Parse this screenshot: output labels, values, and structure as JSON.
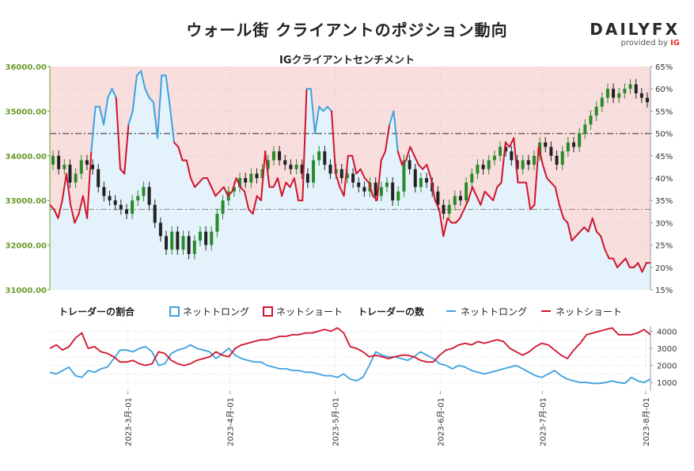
{
  "title": "ウォール街 クライアントのポジション動向",
  "brand": {
    "name": "DAILYFX",
    "provided_by": "provided by",
    "provider": "IG"
  },
  "colors": {
    "long": "#3ea1e0",
    "short": "#d0142d",
    "long_fill": "#e3f2fb",
    "short_fill": "#f9dede",
    "candle_up": "#2a8a2a",
    "candle_down": "#222222",
    "price_axis": "#6a9a2a"
  },
  "legend": {
    "ratio_title": "トレーダーの割合",
    "ratio_long": "ネットトロング",
    "ratio_short": "ネットショート",
    "count_title": "トレーダーの数",
    "count_long": "ネットトロング",
    "count_short": "ネットショート"
  },
  "chart_data": [
    {
      "type": "candlestick+line",
      "title": "IGクライアントセンチメント",
      "y_left": {
        "min": 31000,
        "max": 36000,
        "ticks": [
          "31000.00",
          "32000.00",
          "33000.00",
          "34000.00",
          "35000.00",
          "36000.00"
        ]
      },
      "y_right": {
        "min": 15,
        "max": 65,
        "ticks": [
          "15%",
          "20%",
          "25%",
          "30%",
          "35%",
          "40%",
          "45%",
          "50%",
          "55%",
          "60%",
          "65%"
        ]
      },
      "reference_lines": [
        {
          "axis": "right",
          "value": 50,
          "style": "dash-dot"
        },
        {
          "axis": "left",
          "value": 32800,
          "style": "dash-dot"
        }
      ],
      "x_ticks": [
        "2023-3月-01",
        "2023-4月-01",
        "2023-5月-01",
        "2023-6月-01",
        "2023-7月-01",
        "2023-8月-01"
      ],
      "long_pct": [
        34,
        33,
        31,
        35,
        41,
        34,
        30,
        32,
        36,
        31,
        46,
        56,
        56,
        52,
        58,
        60,
        58,
        42,
        41,
        52,
        55,
        63,
        64,
        60,
        58,
        57,
        49,
        63,
        63,
        56,
        48,
        47,
        44,
        44,
        40,
        38,
        39,
        40,
        40,
        38,
        36,
        37,
        38,
        36,
        37,
        40,
        38,
        37,
        33,
        32,
        36,
        35,
        46,
        38,
        38,
        40,
        36,
        39,
        38,
        40,
        35,
        35,
        60,
        60,
        50,
        56,
        55,
        56,
        55,
        41,
        38,
        36,
        45,
        45,
        41,
        42,
        40,
        39,
        36,
        35,
        44,
        46,
        52,
        55,
        46,
        43,
        44,
        47,
        45,
        43,
        42,
        43,
        40,
        35,
        33,
        27,
        31,
        30,
        30,
        31,
        33,
        35,
        38,
        36,
        34,
        37,
        36,
        35,
        38,
        39,
        48,
        47,
        49,
        39,
        39,
        39,
        33,
        34,
        47,
        43,
        40,
        39,
        38,
        34,
        31,
        30,
        26,
        27,
        28,
        29,
        28,
        31,
        28,
        27,
        24,
        22,
        22,
        20,
        21,
        22,
        20,
        20,
        21,
        19,
        21,
        21
      ],
      "candles": [
        {
          "o": 33800,
          "c": 34000
        },
        {
          "o": 34000,
          "c": 33700
        },
        {
          "o": 33700,
          "c": 33800
        },
        {
          "o": 33800,
          "c": 33400
        },
        {
          "o": 33400,
          "c": 33600
        },
        {
          "o": 33600,
          "c": 33900
        },
        {
          "o": 33900,
          "c": 33800
        },
        {
          "o": 33800,
          "c": 33700
        },
        {
          "o": 33700,
          "c": 33300
        },
        {
          "o": 33300,
          "c": 33100
        },
        {
          "o": 33100,
          "c": 33000
        },
        {
          "o": 33000,
          "c": 32900
        },
        {
          "o": 32900,
          "c": 32800
        },
        {
          "o": 32800,
          "c": 32700
        },
        {
          "o": 32700,
          "c": 33000
        },
        {
          "o": 33000,
          "c": 33100
        },
        {
          "o": 33100,
          "c": 33300
        },
        {
          "o": 33300,
          "c": 32900
        },
        {
          "o": 32900,
          "c": 32500
        },
        {
          "o": 32500,
          "c": 32200
        },
        {
          "o": 32200,
          "c": 31900
        },
        {
          "o": 31900,
          "c": 32300
        },
        {
          "o": 32300,
          "c": 31900
        },
        {
          "o": 31900,
          "c": 32200
        },
        {
          "o": 32200,
          "c": 31800
        },
        {
          "o": 31800,
          "c": 32100
        },
        {
          "o": 32100,
          "c": 32300
        },
        {
          "o": 32300,
          "c": 32000
        },
        {
          "o": 32000,
          "c": 32300
        },
        {
          "o": 32300,
          "c": 32700
        },
        {
          "o": 32700,
          "c": 33000
        },
        {
          "o": 33000,
          "c": 33200
        },
        {
          "o": 33200,
          "c": 33300
        },
        {
          "o": 33300,
          "c": 33500
        },
        {
          "o": 33500,
          "c": 33400
        },
        {
          "o": 33400,
          "c": 33600
        },
        {
          "o": 33600,
          "c": 33500
        },
        {
          "o": 33500,
          "c": 33700
        },
        {
          "o": 33700,
          "c": 33900
        },
        {
          "o": 33900,
          "c": 34100
        },
        {
          "o": 34100,
          "c": 33900
        },
        {
          "o": 33900,
          "c": 33800
        },
        {
          "o": 33800,
          "c": 33700
        },
        {
          "o": 33700,
          "c": 33800
        },
        {
          "o": 33800,
          "c": 33600
        },
        {
          "o": 33600,
          "c": 33400
        },
        {
          "o": 33400,
          "c": 33900
        },
        {
          "o": 33900,
          "c": 34100
        },
        {
          "o": 34100,
          "c": 33800
        },
        {
          "o": 33800,
          "c": 33600
        },
        {
          "o": 33600,
          "c": 33700
        },
        {
          "o": 33700,
          "c": 33500
        },
        {
          "o": 33500,
          "c": 33600
        },
        {
          "o": 33600,
          "c": 33400
        },
        {
          "o": 33400,
          "c": 33300
        },
        {
          "o": 33300,
          "c": 33200
        },
        {
          "o": 33200,
          "c": 33400
        },
        {
          "o": 33400,
          "c": 33100
        },
        {
          "o": 33100,
          "c": 33300
        },
        {
          "o": 33300,
          "c": 33400
        },
        {
          "o": 33400,
          "c": 33000
        },
        {
          "o": 33000,
          "c": 33200
        },
        {
          "o": 33200,
          "c": 33900
        },
        {
          "o": 33900,
          "c": 33700
        },
        {
          "o": 33700,
          "c": 33300
        },
        {
          "o": 33300,
          "c": 33500
        },
        {
          "o": 33500,
          "c": 33400
        },
        {
          "o": 33400,
          "c": 33200
        },
        {
          "o": 33200,
          "c": 32900
        },
        {
          "o": 32900,
          "c": 32700
        },
        {
          "o": 32700,
          "c": 32900
        },
        {
          "o": 32900,
          "c": 33100
        },
        {
          "o": 33100,
          "c": 33000
        },
        {
          "o": 33000,
          "c": 33400
        },
        {
          "o": 33400,
          "c": 33600
        },
        {
          "o": 33600,
          "c": 33800
        },
        {
          "o": 33800,
          "c": 33700
        },
        {
          "o": 33700,
          "c": 33900
        },
        {
          "o": 33900,
          "c": 34000
        },
        {
          "o": 34000,
          "c": 34200
        },
        {
          "o": 34200,
          "c": 34100
        },
        {
          "o": 34100,
          "c": 33900
        },
        {
          "o": 33900,
          "c": 33700
        },
        {
          "o": 33700,
          "c": 33900
        },
        {
          "o": 33900,
          "c": 33800
        },
        {
          "o": 33800,
          "c": 34000
        },
        {
          "o": 34000,
          "c": 34300
        },
        {
          "o": 34300,
          "c": 34200
        },
        {
          "o": 34200,
          "c": 34000
        },
        {
          "o": 34000,
          "c": 33800
        },
        {
          "o": 33800,
          "c": 34100
        },
        {
          "o": 34100,
          "c": 34300
        },
        {
          "o": 34300,
          "c": 34200
        },
        {
          "o": 34200,
          "c": 34500
        },
        {
          "o": 34500,
          "c": 34700
        },
        {
          "o": 34700,
          "c": 34900
        },
        {
          "o": 34900,
          "c": 35100
        },
        {
          "o": 35100,
          "c": 35300
        },
        {
          "o": 35300,
          "c": 35500
        },
        {
          "o": 35500,
          "c": 35300
        },
        {
          "o": 35300,
          "c": 35400
        },
        {
          "o": 35400,
          "c": 35500
        },
        {
          "o": 35500,
          "c": 35600
        },
        {
          "o": 35600,
          "c": 35400
        },
        {
          "o": 35400,
          "c": 35300
        },
        {
          "o": 35300,
          "c": 35200
        }
      ]
    },
    {
      "type": "line",
      "title": "",
      "y_right": {
        "min": 500,
        "max": 4300,
        "ticks": [
          "1000",
          "2000",
          "3000",
          "4000"
        ]
      },
      "series": [
        {
          "name": "ネットトロング",
          "color": "#3ea1e0",
          "values": [
            1600,
            1500,
            1700,
            1900,
            1400,
            1300,
            1700,
            1600,
            1800,
            1900,
            2400,
            2900,
            2900,
            2800,
            3000,
            3100,
            2800,
            2000,
            2100,
            2700,
            2900,
            3000,
            3200,
            3000,
            2900,
            2800,
            2400,
            2700,
            3000,
            2600,
            2400,
            2300,
            2200,
            2200,
            2000,
            1900,
            1800,
            1800,
            1700,
            1700,
            1600,
            1600,
            1500,
            1400,
            1400,
            1300,
            1500,
            1200,
            1100,
            1300,
            2000,
            2800,
            2600,
            2500,
            2500,
            2400,
            2300,
            2500,
            2800,
            2600,
            2400,
            2100,
            2000,
            1800,
            2000,
            1900,
            1700,
            1600,
            1500,
            1600,
            1700,
            1800,
            1900,
            2000,
            1800,
            1600,
            1400,
            1300,
            1500,
            1700,
            1400,
            1200,
            1100,
            1000,
            1000,
            950,
            950,
            1000,
            1100,
            1000,
            950,
            1300,
            1100,
            1000,
            1200
          ]
        },
        {
          "name": "ネットショート",
          "color": "#d0142d",
          "values": [
            3000,
            3200,
            2900,
            3100,
            3600,
            3900,
            3000,
            3100,
            2800,
            2700,
            2500,
            2200,
            2200,
            2300,
            2100,
            2000,
            2100,
            2800,
            2700,
            2300,
            2100,
            2000,
            2100,
            2300,
            2400,
            2500,
            2800,
            2600,
            2500,
            3000,
            3200,
            3300,
            3400,
            3500,
            3500,
            3600,
            3700,
            3700,
            3800,
            3800,
            3900,
            3900,
            4000,
            4100,
            4000,
            4200,
            3900,
            3100,
            3000,
            2800,
            2500,
            2600,
            2500,
            2400,
            2500,
            2600,
            2600,
            2500,
            2300,
            2200,
            2200,
            2600,
            2900,
            3000,
            3200,
            3300,
            3200,
            3400,
            3300,
            3400,
            3500,
            3400,
            3000,
            2800,
            2600,
            2800,
            3100,
            3300,
            3200,
            2900,
            2600,
            2400,
            2900,
            3300,
            3800,
            3900,
            4000,
            4100,
            4200,
            3800,
            3800,
            3800,
            3900,
            4100,
            3800
          ]
        }
      ]
    }
  ]
}
